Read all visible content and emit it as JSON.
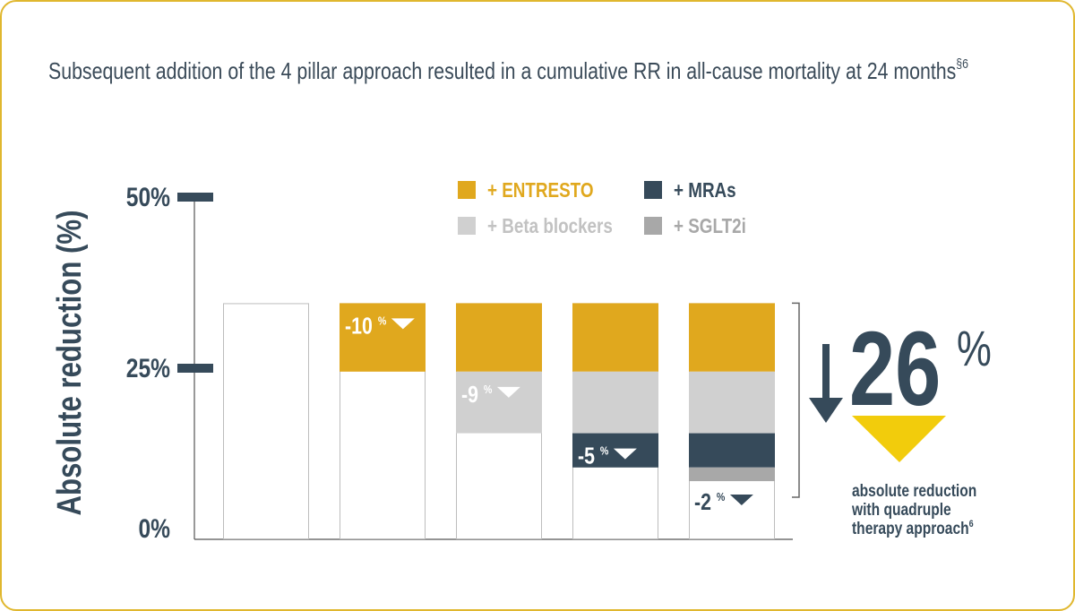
{
  "title": {
    "main": "Subsequent addition of the 4 pillar approach resulted in a cumulative RR in all-cause mortality at 24 months",
    "superscript": "§6"
  },
  "chart_data": {
    "type": "bar",
    "stacked": true,
    "ylabel": "Absolute reduction (%)",
    "y_ticks": [
      "50%",
      "25%",
      "0%"
    ],
    "ylim": [
      0,
      50
    ],
    "baseline_total": 34.5,
    "bars": [
      {
        "segments": []
      },
      {
        "segments": [
          {
            "series": "+ ENTRESTO",
            "value": 10
          }
        ],
        "change_label": {
          "value": "-10",
          "unit": "%"
        }
      },
      {
        "segments": [
          {
            "series": "+ ENTRESTO",
            "value": 10
          },
          {
            "series": "+ Beta blockers",
            "value": 9
          }
        ],
        "change_label": {
          "value": "-9",
          "unit": "%"
        }
      },
      {
        "segments": [
          {
            "series": "+ ENTRESTO",
            "value": 10
          },
          {
            "series": "+ Beta blockers",
            "value": 9
          },
          {
            "series": "+ MRAs",
            "value": 5
          }
        ],
        "change_label": {
          "value": "-5",
          "unit": "%"
        }
      },
      {
        "segments": [
          {
            "series": "+ ENTRESTO",
            "value": 10
          },
          {
            "series": "+ Beta blockers",
            "value": 9
          },
          {
            "series": "+ MRAs",
            "value": 5
          },
          {
            "series": "+ SGLT2i",
            "value": 2
          }
        ],
        "change_label": {
          "value": "-2",
          "unit": "%"
        }
      }
    ],
    "series": [
      {
        "name": "+ ENTRESTO",
        "color": "#e0a81e",
        "label_color": "#e0a81e"
      },
      {
        "name": "+ MRAs",
        "color": "#364a5a",
        "label_color": "#364a5a"
      },
      {
        "name": "+ Beta blockers",
        "color": "#d0d0d0",
        "label_color": "#c2c2c2"
      },
      {
        "name": "+ SGLT2i",
        "color": "#a8a8a8",
        "label_color": "#a8a8a8"
      }
    ],
    "legend_position": "top-right",
    "summary": {
      "value": "26",
      "unit": "%",
      "caption": [
        "absolute reduction",
        "with quadruple",
        "therapy approach"
      ],
      "caption_superscript": "6"
    }
  },
  "colors": {
    "border": "#e0b72e",
    "text_dark": "#364a5a",
    "summary_triangle": "#f2cc0c"
  }
}
